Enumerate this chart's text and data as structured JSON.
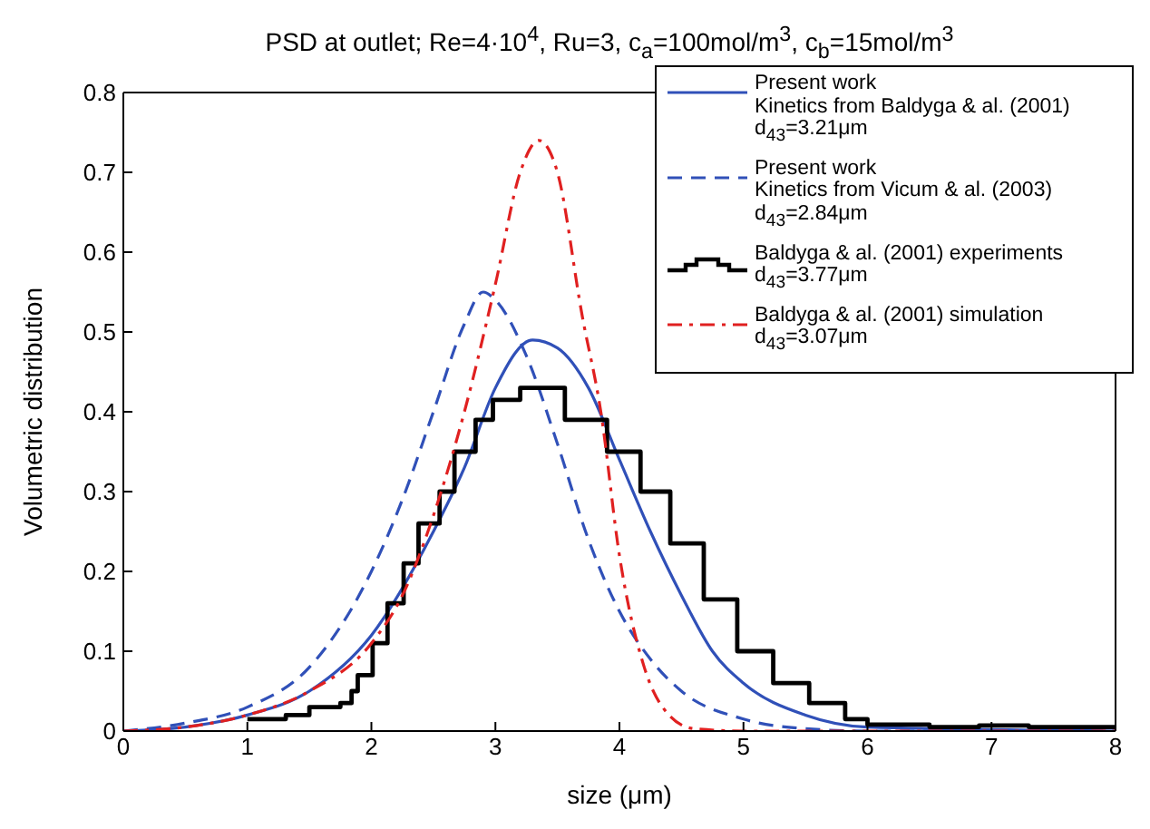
{
  "chart_data": {
    "type": "line",
    "title": "PSD at outlet; Re=4·10$^{4}$, Ru=3, c$_{a}$=100mol/m$^{3}$, c$_{b}$=15mol/m$^{3}$",
    "xlabel": "size (μm)",
    "ylabel": "Volumetric distribution",
    "xlim": [
      0,
      8
    ],
    "xticks": [
      0,
      1,
      2,
      3,
      4,
      5,
      6,
      7,
      8
    ],
    "ylim": [
      0,
      0.8
    ],
    "yticks": [
      0,
      0.1,
      0.2,
      0.3,
      0.4,
      0.5,
      0.6,
      0.7,
      0.8
    ],
    "legend": "top right",
    "marker": "none",
    "series": [
      {
        "name": "Present work\nKinetics from Baldyga & al. (2001)\nd$_{43}$=3.21μm",
        "color": "#3050b8",
        "line_style": "solid",
        "x": [
          0,
          0.5,
          1,
          1.5,
          2,
          2.5,
          2.75,
          3,
          3.3,
          3.5,
          3.75,
          4,
          4.25,
          4.5,
          4.75,
          5,
          5.5,
          6,
          8
        ],
        "values": [
          0,
          0.005,
          0.02,
          0.05,
          0.12,
          0.25,
          0.33,
          0.43,
          0.49,
          0.48,
          0.43,
          0.34,
          0.25,
          0.17,
          0.1,
          0.06,
          0.02,
          0.005,
          0
        ]
      },
      {
        "name": "Present work\nKinetics from Vicum & al. (2003)\nd$_{43}$=2.84μm",
        "color": "#3050b8",
        "line_style": "dashed",
        "x": [
          0,
          0.5,
          1,
          1.5,
          2,
          2.25,
          2.5,
          2.75,
          2.9,
          3,
          3.25,
          3.5,
          3.75,
          4,
          4.25,
          4.5,
          5,
          5.5,
          6,
          8
        ],
        "values": [
          0,
          0.01,
          0.03,
          0.08,
          0.2,
          0.29,
          0.4,
          0.51,
          0.55,
          0.54,
          0.47,
          0.36,
          0.24,
          0.15,
          0.09,
          0.05,
          0.015,
          0.003,
          0,
          0
        ]
      },
      {
        "name": "Baldyga & al. (2001) experiments\nd$_{43}$=3.77μm",
        "type": "step",
        "color": "#000000",
        "line_style": "solid",
        "x": [
          1,
          1.31,
          1.5,
          1.75,
          1.84,
          1.89,
          2.01,
          2.13,
          2.26,
          2.38,
          2.55,
          2.67,
          2.84,
          2.98,
          3.2,
          3.56,
          3.9,
          4.17,
          4.41,
          4.68,
          4.95,
          5.24,
          5.53,
          5.82,
          6,
          6.5,
          6.9,
          7.3,
          8
        ],
        "values": [
          0.015,
          0.02,
          0.03,
          0.035,
          0.05,
          0.07,
          0.11,
          0.16,
          0.21,
          0.26,
          0.3,
          0.35,
          0.39,
          0.415,
          0.43,
          0.39,
          0.35,
          0.3,
          0.235,
          0.165,
          0.1,
          0.06,
          0.035,
          0.015,
          0.008,
          0.005,
          0.007,
          0.005,
          0.005
        ]
      },
      {
        "name": "Baldyga & al. (2001) simulation\nd$_{43}$=3.07μm",
        "color": "#e02020",
        "line_style": "dashdot",
        "x": [
          0,
          0.5,
          1,
          1.5,
          2,
          2.25,
          2.5,
          2.75,
          3,
          3.2,
          3.35,
          3.5,
          3.7,
          3.85,
          4,
          4.2,
          4.4,
          4.6,
          5,
          8
        ],
        "values": [
          0,
          0.005,
          0.02,
          0.05,
          0.11,
          0.17,
          0.27,
          0.4,
          0.56,
          0.7,
          0.74,
          0.7,
          0.52,
          0.4,
          0.22,
          0.08,
          0.02,
          0.003,
          0,
          0
        ]
      }
    ]
  }
}
